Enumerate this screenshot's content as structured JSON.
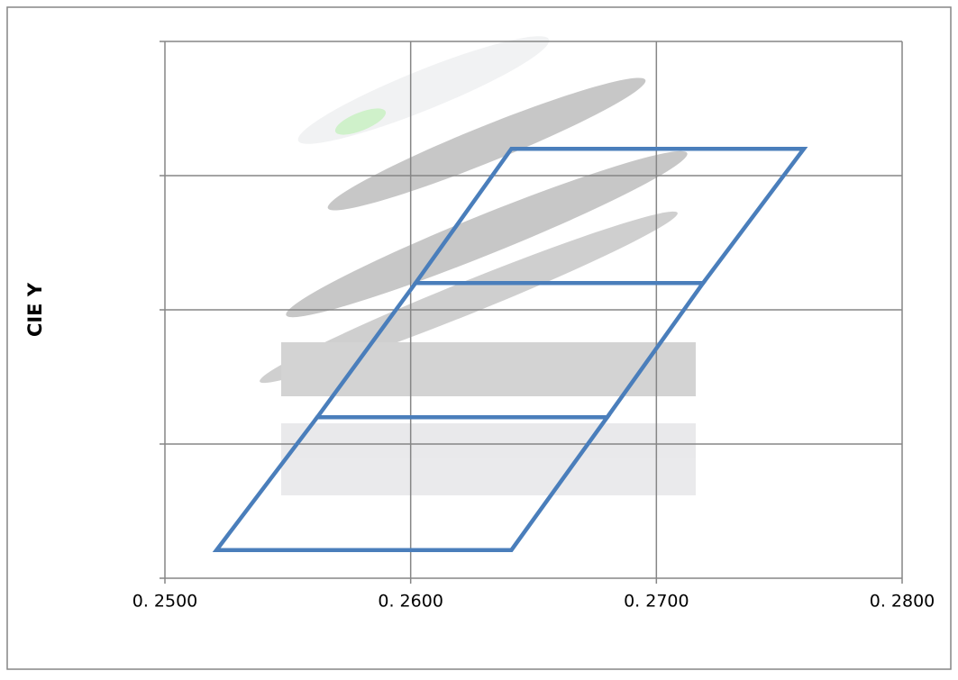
{
  "chart_data": {
    "type": "polygon",
    "y_label": "CIE Y",
    "color": "#4a7ebb",
    "grid": true,
    "xlim": [
      0.25,
      0.28
    ],
    "xticks": [
      {
        "value": 0.25,
        "label": "0. 2500"
      },
      {
        "value": 0.26,
        "label": "0. 2600"
      },
      {
        "value": 0.27,
        "label": "0. 2700"
      },
      {
        "value": 0.28,
        "label": "0. 2800"
      }
    ],
    "ylim": [
      0.22,
      0.3
    ],
    "yticks": [
      0.22,
      0.24,
      0.26,
      0.28,
      0.3
    ],
    "shapes": [
      {
        "x": [
          0.2521,
          0.2641,
          0.268,
          0.2562
        ],
        "y": [
          0.2242,
          0.2242,
          0.244,
          0.244
        ]
      },
      {
        "x": [
          0.2562,
          0.268,
          0.2719,
          0.2602
        ],
        "y": [
          0.244,
          0.244,
          0.264,
          0.264
        ]
      },
      {
        "x": [
          0.2602,
          0.2719,
          0.276,
          0.2641
        ],
        "y": [
          0.264,
          0.264,
          0.284,
          0.284
        ]
      }
    ]
  }
}
